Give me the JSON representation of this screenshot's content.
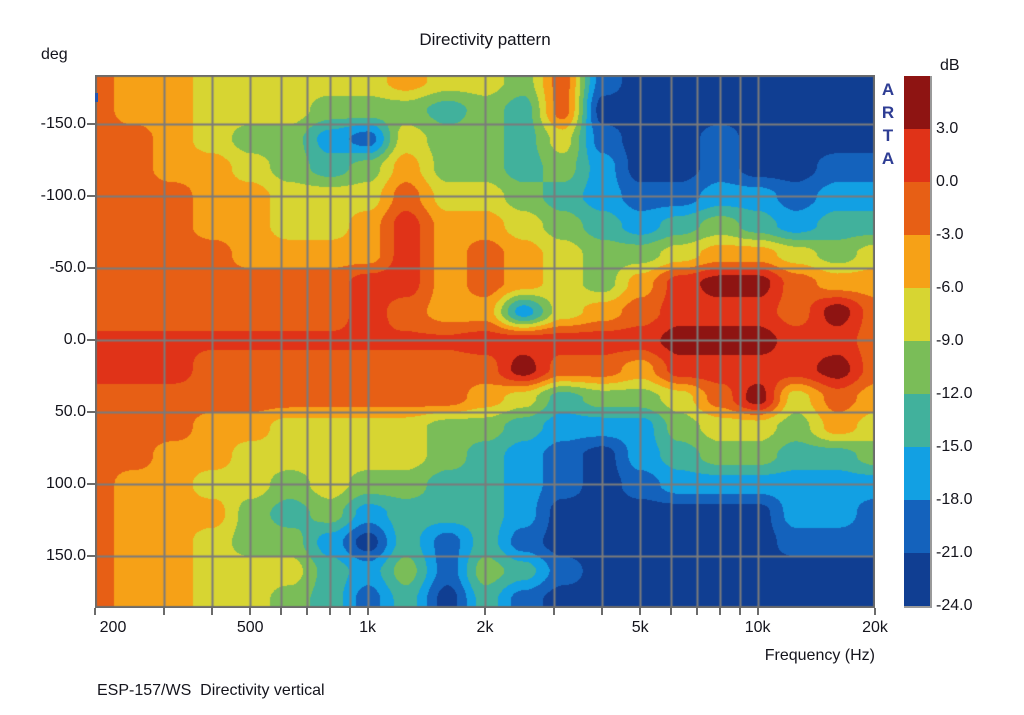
{
  "title": "Directivity pattern",
  "caption": "ESP-157/WS  Directivity vertical",
  "watermark": {
    "text": "ARTA",
    "color": "#2e3d94"
  },
  "y_axis": {
    "unit_label": "deg",
    "tick_labels": [
      "-150.0",
      "-100.0",
      "-50.0",
      "0.0",
      "50.0",
      "100.0",
      "150.0"
    ],
    "tick_angles_deg": [
      -150,
      -100,
      -50,
      0,
      50,
      100,
      150
    ]
  },
  "x_axis": {
    "label": "Frequency (Hz)",
    "major_tick_labels": [
      "200",
      "500",
      "1k",
      "2k",
      "5k",
      "10k",
      "20k"
    ],
    "major_tick_freqs_hz": [
      200,
      500,
      1000,
      2000,
      5000,
      10000,
      20000
    ],
    "gridline_freqs_hz": [
      300,
      400,
      500,
      600,
      700,
      800,
      900,
      1000,
      2000,
      3000,
      4000,
      5000,
      6000,
      7000,
      8000,
      9000,
      10000
    ]
  },
  "colorbar": {
    "unit_label": "dB",
    "boundary_labels": [
      "3.0",
      "0.0",
      "-3.0",
      "-6.0",
      "-9.0",
      "-12.0",
      "-15.0",
      "-18.0",
      "-21.0",
      "-24.0"
    ],
    "levels_db": [
      3,
      0,
      -3,
      -6,
      -9,
      -12,
      -15,
      -18,
      -21,
      -24
    ],
    "colors": [
      "#8e1412",
      "#e03318",
      "#e75f15",
      "#f6a117",
      "#d7d532",
      "#7abd58",
      "#41b19c",
      "#12a0e3",
      "#1462bc",
      "#103e92"
    ]
  },
  "style": {
    "grid_color": "#7b7b7b",
    "border_color": "#6b6b6b",
    "text_color": "#14141c",
    "background": "#ffffff"
  },
  "chart_data": {
    "type": "heatmap",
    "x_name": "Frequency (Hz)",
    "x_scale": "log",
    "x_range_hz": [
      200,
      20000
    ],
    "y_name": "Angle (deg)",
    "y_range_deg": [
      -184,
      186
    ],
    "z_name": "Level (dB)",
    "z_levels_db": [
      3,
      0,
      -3,
      -6,
      -9,
      -12,
      -15,
      -18,
      -21,
      -24
    ],
    "freqs_hz": [
      200,
      250,
      315,
      400,
      500,
      630,
      800,
      1000,
      1250,
      1600,
      2000,
      2500,
      3150,
      4000,
      5000,
      6300,
      8000,
      10000,
      12500,
      16000,
      20000
    ],
    "angles_deg": [
      -180,
      -160,
      -140,
      -120,
      -100,
      -80,
      -60,
      -40,
      -20,
      0,
      20,
      40,
      60,
      80,
      100,
      120,
      140,
      160,
      180
    ],
    "values_db": [
      [
        -1.5,
        -4.5,
        -4.5,
        -7.5,
        -7.5,
        -7.5,
        -7.5,
        -7.5,
        -4.5,
        -7.5,
        -7.5,
        -10.5,
        -1.5,
        -19.5,
        -22.5,
        -22.5,
        -22.5,
        -22.5,
        -22.5,
        -22.5,
        -22.5
      ],
      [
        -1.5,
        -4.5,
        -4.5,
        -7.5,
        -7.5,
        -7.5,
        -10.5,
        -10.5,
        -10.5,
        -13.5,
        -10.5,
        -13.5,
        -1.5,
        -22.5,
        -22.5,
        -22.5,
        -22.5,
        -22.5,
        -22.5,
        -22.5,
        -22.5
      ],
      [
        -1.5,
        -1.5,
        -4.5,
        -7.5,
        -10.5,
        -10.5,
        -16.5,
        -19.5,
        -7.5,
        -10.5,
        -10.5,
        -13.5,
        -7.5,
        -19.5,
        -22.5,
        -22.5,
        -19.5,
        -22.5,
        -22.5,
        -22.5,
        -22.5
      ],
      [
        -1.5,
        -1.5,
        -4.5,
        -4.5,
        -7.5,
        -10.5,
        -13.5,
        -10.5,
        -4.5,
        -10.5,
        -10.5,
        -13.5,
        -10.5,
        -16.5,
        -22.5,
        -22.5,
        -19.5,
        -22.5,
        -22.5,
        -19.5,
        -19.5
      ],
      [
        -1.5,
        -1.5,
        -1.5,
        -4.5,
        -4.5,
        -7.5,
        -7.5,
        -7.5,
        -1.5,
        -7.5,
        -7.5,
        -10.5,
        -13.5,
        -16.5,
        -19.5,
        -19.5,
        -16.5,
        -16.5,
        -19.5,
        -16.5,
        -16.5
      ],
      [
        -1.5,
        -1.5,
        -1.5,
        -4.5,
        -4.5,
        -7.5,
        -7.5,
        -4.5,
        1.5,
        -4.5,
        -4.5,
        -7.5,
        -10.5,
        -13.5,
        -16.5,
        -13.5,
        -10.5,
        -13.5,
        -16.5,
        -13.5,
        -13.5
      ],
      [
        -1.5,
        -1.5,
        -1.5,
        -1.5,
        -4.5,
        -4.5,
        -4.5,
        -4.5,
        1.5,
        -4.5,
        -1.5,
        -4.5,
        -7.5,
        -10.5,
        -10.5,
        -7.5,
        -4.5,
        -4.5,
        -7.5,
        -10.5,
        -7.5
      ],
      [
        -1.5,
        -1.5,
        -1.5,
        -1.5,
        -1.5,
        -1.5,
        -1.5,
        1.5,
        1.5,
        -4.5,
        -1.5,
        -4.5,
        -7.5,
        -10.5,
        -4.5,
        1.5,
        4.5,
        4.5,
        -1.5,
        -4.5,
        -4.5
      ],
      [
        -1.5,
        -1.5,
        -1.5,
        -1.5,
        -1.5,
        -1.5,
        -1.5,
        1.5,
        -1.5,
        -4.5,
        -4.5,
        -16.5,
        -7.5,
        -4.5,
        -1.5,
        1.5,
        1.5,
        1.5,
        -1.5,
        4.5,
        -1.5
      ],
      [
        0.5,
        0.5,
        0.5,
        0.5,
        0.5,
        0.5,
        0.5,
        0.5,
        0.5,
        0.5,
        1.5,
        1.5,
        1.5,
        1.5,
        1.5,
        4.5,
        4.5,
        4.5,
        1.5,
        1.5,
        -1.5
      ],
      [
        1.5,
        1.5,
        1.5,
        -1.5,
        -1.5,
        -1.5,
        -1.5,
        -1.5,
        -1.5,
        -1.5,
        -1.5,
        4.5,
        -1.5,
        -1.5,
        -4.5,
        1.5,
        1.5,
        1.5,
        1.5,
        4.5,
        -1.5
      ],
      [
        -1.5,
        -1.5,
        -1.5,
        -1.5,
        -1.5,
        -1.5,
        -1.5,
        -1.5,
        -1.5,
        -1.5,
        -4.5,
        -7.5,
        -13.5,
        -10.5,
        -10.5,
        -7.5,
        -1.5,
        4.5,
        -7.5,
        -1.5,
        -4.5
      ],
      [
        -1.5,
        -1.5,
        -1.5,
        -4.5,
        -4.5,
        -7.5,
        -7.5,
        -7.5,
        -7.5,
        -10.5,
        -10.5,
        -13.5,
        -16.5,
        -16.5,
        -16.5,
        -10.5,
        -7.5,
        -7.5,
        -10.5,
        -4.5,
        -7.5
      ],
      [
        -1.5,
        -1.5,
        -4.5,
        -4.5,
        -7.5,
        -7.5,
        -7.5,
        -7.5,
        -7.5,
        -10.5,
        -13.5,
        -16.5,
        -19.5,
        -22.5,
        -16.5,
        -13.5,
        -10.5,
        -10.5,
        -13.5,
        -13.5,
        -10.5
      ],
      [
        -1.5,
        -4.5,
        -4.5,
        -7.5,
        -7.5,
        -10.5,
        -7.5,
        -10.5,
        -10.5,
        -13.5,
        -13.5,
        -16.5,
        -19.5,
        -22.5,
        -19.5,
        -16.5,
        -16.5,
        -16.5,
        -16.5,
        -16.5,
        -16.5
      ],
      [
        -1.5,
        -4.5,
        -4.5,
        -4.5,
        -10.5,
        -13.5,
        -10.5,
        -16.5,
        -13.5,
        -13.5,
        -13.5,
        -16.5,
        -22.5,
        -22.5,
        -22.5,
        -22.5,
        -22.5,
        -22.5,
        -16.5,
        -16.5,
        -19.5
      ],
      [
        -1.5,
        -4.5,
        -4.5,
        -7.5,
        -10.5,
        -10.5,
        -16.5,
        -22.5,
        -13.5,
        -19.5,
        -13.5,
        -19.5,
        -22.5,
        -22.5,
        -22.5,
        -22.5,
        -22.5,
        -22.5,
        -19.5,
        -19.5,
        -19.5
      ],
      [
        -1.5,
        -4.5,
        -4.5,
        -7.5,
        -7.5,
        -7.5,
        -13.5,
        -16.5,
        -10.5,
        -19.5,
        -10.5,
        -13.5,
        -19.5,
        -22.5,
        -22.5,
        -22.5,
        -22.5,
        -22.5,
        -22.5,
        -22.5,
        -22.5
      ],
      [
        -1.5,
        -4.5,
        -4.5,
        -7.5,
        -7.5,
        -10.5,
        -13.5,
        -19.5,
        -13.5,
        -22.5,
        -13.5,
        -19.5,
        -22.5,
        -22.5,
        -22.5,
        -22.5,
        -22.5,
        -22.5,
        -22.5,
        -22.5,
        -22.5
      ]
    ]
  }
}
